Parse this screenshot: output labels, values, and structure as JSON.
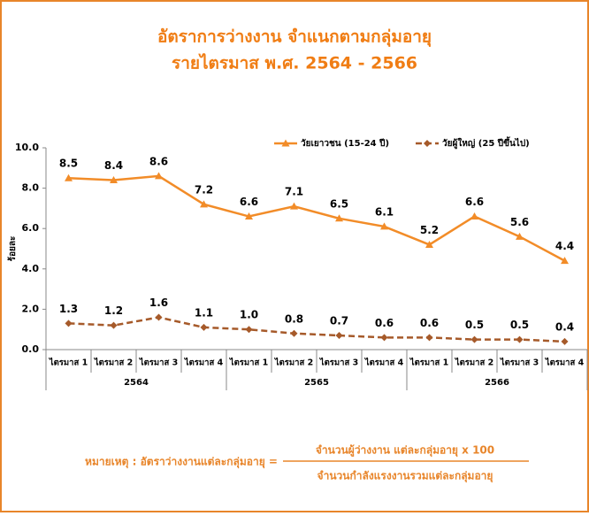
{
  "chart_data": {
    "type": "line",
    "title": "อัตราการว่างงาน จำแนกตามกลุ่มอายุ",
    "subtitle": "รายไตรมาส พ.ศ. 2564 - 2566",
    "y_label": "ร้อยละ",
    "categories": [
      "ไตรมาส 1",
      "ไตรมาส 2",
      "ไตรมาส 3",
      "ไตรมาส 4",
      "ไตรมาส 1",
      "ไตรมาส 2",
      "ไตรมาส 3",
      "ไตรมาส 4",
      "ไตรมาส 1",
      "ไตรมาส 2",
      "ไตรมาส 3",
      "ไตรมาส 4"
    ],
    "x_groups": [
      "2564",
      "2565",
      "2566"
    ],
    "series": [
      {
        "name": "วัยเยาวชน (15-24 ปี)",
        "color": "#f28c28",
        "marker": "triangle",
        "dash": false,
        "values": [
          8.5,
          8.4,
          8.6,
          7.2,
          6.6,
          7.1,
          6.5,
          6.1,
          5.2,
          6.6,
          5.6,
          4.4
        ],
        "value_labels": [
          "8.5",
          "8.4",
          "8.6",
          "7.2",
          "6.6",
          "7.1",
          "6.5",
          "6.1",
          "5.2",
          "6.6",
          "5.6",
          "4.4"
        ]
      },
      {
        "name": "วัยผู้ใหญ่ (25 ปีขึ้นไป)",
        "color": "#a65a2a",
        "marker": "diamond",
        "dash": true,
        "values": [
          1.3,
          1.2,
          1.6,
          1.1,
          1.0,
          0.8,
          0.7,
          0.6,
          0.6,
          0.5,
          0.5,
          0.4
        ],
        "value_labels": [
          "1.3",
          "1.2",
          "1.6",
          "1.1",
          "1.0",
          "0.8",
          "0.7",
          "0.6",
          "0.6",
          "0.5",
          "0.5",
          "0.4"
        ]
      }
    ],
    "ylim": [
      0,
      10
    ],
    "yticks": [
      {
        "value": 0,
        "label": "0.0"
      },
      {
        "value": 2,
        "label": "2.0"
      },
      {
        "value": 4,
        "label": "4.0"
      },
      {
        "value": 6,
        "label": "6.0"
      },
      {
        "value": 8,
        "label": "8.0"
      },
      {
        "value": 10,
        "label": "10.0"
      }
    ],
    "legend": "top-right",
    "note": {
      "label": "หมายเหตุ : อัตราว่างงานแต่ละกลุ่มอายุ =",
      "numerator": "จำนวนผู้ว่างงาน แต่ละกลุ่มอายุ x 100",
      "denominator": "จำนวนกำลังแรงงานรวมแต่ละกลุ่มอายุ"
    }
  }
}
